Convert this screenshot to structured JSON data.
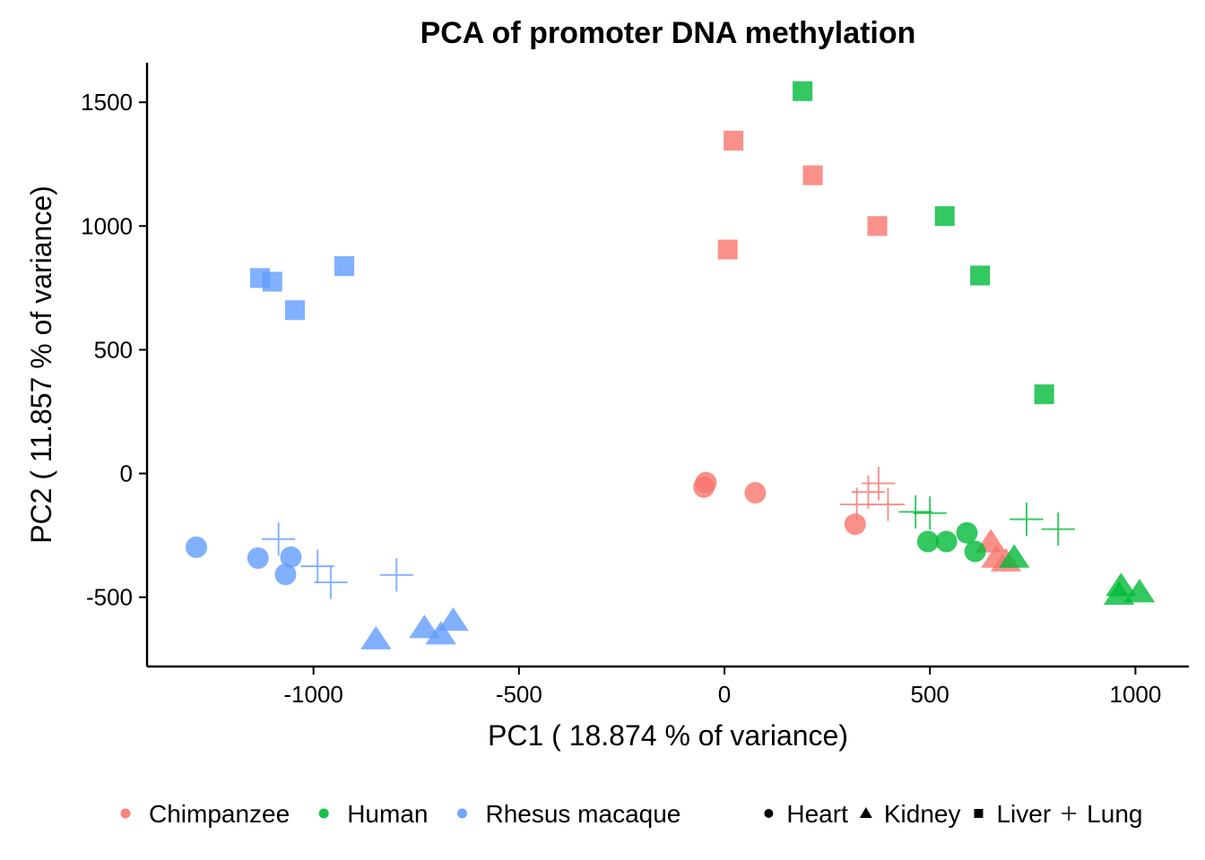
{
  "chart_data": {
    "type": "scatter",
    "title": "PCA of promoter DNA methylation",
    "xlabel": "PC1 ( 18.874 % of variance)",
    "ylabel": "PC2 ( 11.857 % of variance)",
    "xlim": [
      -1405,
      1130
    ],
    "ylim": [
      -780,
      1660
    ],
    "xticks": [
      -1000,
      -500,
      0,
      500,
      1000
    ],
    "xtick_labels": [
      "-1000",
      "-500",
      "0",
      "500",
      "1000"
    ],
    "yticks": [
      -500,
      0,
      500,
      1000,
      1500
    ],
    "ytick_labels": [
      "-500",
      "0",
      "500",
      "1000",
      "1500"
    ],
    "grid": false,
    "legend_position": "bottom",
    "color_legend": [
      {
        "label": "Chimpanzee",
        "color": "#F8766D"
      },
      {
        "label": "Human",
        "color": "#00BA38"
      },
      {
        "label": "Rhesus macaque",
        "color": "#619CFF"
      }
    ],
    "shape_legend": [
      {
        "label": "Heart",
        "shape": "circle"
      },
      {
        "label": "Kidney",
        "shape": "triangle"
      },
      {
        "label": "Liver",
        "shape": "square"
      },
      {
        "label": "Lung",
        "shape": "plus"
      }
    ],
    "series": [
      {
        "name": "Chimpanzee",
        "color": "#F8766D",
        "points": [
          {
            "x": 22,
            "y": 1345,
            "shape": "square"
          },
          {
            "x": 215,
            "y": 1205,
            "shape": "square"
          },
          {
            "x": 372,
            "y": 1000,
            "shape": "square"
          },
          {
            "x": 8,
            "y": 905,
            "shape": "square"
          },
          {
            "x": -50,
            "y": -55,
            "shape": "circle"
          },
          {
            "x": -45,
            "y": -37,
            "shape": "circle"
          },
          {
            "x": 75,
            "y": -78,
            "shape": "circle"
          },
          {
            "x": 318,
            "y": -205,
            "shape": "circle"
          },
          {
            "x": 322,
            "y": -125,
            "shape": "plus"
          },
          {
            "x": 350,
            "y": -75,
            "shape": "plus"
          },
          {
            "x": 375,
            "y": -40,
            "shape": "plus"
          },
          {
            "x": 398,
            "y": -125,
            "shape": "plus"
          },
          {
            "x": 648,
            "y": -278,
            "shape": "triangle"
          },
          {
            "x": 662,
            "y": -340,
            "shape": "triangle"
          },
          {
            "x": 685,
            "y": -355,
            "shape": "triangle"
          }
        ]
      },
      {
        "name": "Human",
        "color": "#00BA38",
        "points": [
          {
            "x": 190,
            "y": 1545,
            "shape": "square"
          },
          {
            "x": 536,
            "y": 1040,
            "shape": "square"
          },
          {
            "x": 622,
            "y": 800,
            "shape": "square"
          },
          {
            "x": 778,
            "y": 320,
            "shape": "square"
          },
          {
            "x": 495,
            "y": -275,
            "shape": "circle"
          },
          {
            "x": 540,
            "y": -275,
            "shape": "circle"
          },
          {
            "x": 590,
            "y": -240,
            "shape": "circle"
          },
          {
            "x": 610,
            "y": -315,
            "shape": "circle"
          },
          {
            "x": 465,
            "y": -155,
            "shape": "plus"
          },
          {
            "x": 500,
            "y": -160,
            "shape": "plus"
          },
          {
            "x": 735,
            "y": -185,
            "shape": "plus"
          },
          {
            "x": 812,
            "y": -225,
            "shape": "plus"
          },
          {
            "x": 705,
            "y": -340,
            "shape": "triangle"
          },
          {
            "x": 965,
            "y": -455,
            "shape": "triangle"
          },
          {
            "x": 960,
            "y": -490,
            "shape": "triangle"
          },
          {
            "x": 1010,
            "y": -480,
            "shape": "triangle"
          }
        ]
      },
      {
        "name": "Rhesus macaque",
        "color": "#619CFF",
        "points": [
          {
            "x": -1130,
            "y": 790,
            "shape": "square"
          },
          {
            "x": -1100,
            "y": 775,
            "shape": "square"
          },
          {
            "x": -1045,
            "y": 660,
            "shape": "square"
          },
          {
            "x": -925,
            "y": 838,
            "shape": "square"
          },
          {
            "x": -1285,
            "y": -298,
            "shape": "circle"
          },
          {
            "x": -1135,
            "y": -342,
            "shape": "circle"
          },
          {
            "x": -1055,
            "y": -338,
            "shape": "circle"
          },
          {
            "x": -1068,
            "y": -408,
            "shape": "circle"
          },
          {
            "x": -1085,
            "y": -265,
            "shape": "plus"
          },
          {
            "x": -990,
            "y": -375,
            "shape": "plus"
          },
          {
            "x": -958,
            "y": -440,
            "shape": "plus"
          },
          {
            "x": -798,
            "y": -410,
            "shape": "plus"
          },
          {
            "x": -848,
            "y": -670,
            "shape": "triangle"
          },
          {
            "x": -730,
            "y": -625,
            "shape": "triangle"
          },
          {
            "x": -690,
            "y": -650,
            "shape": "triangle"
          },
          {
            "x": -660,
            "y": -595,
            "shape": "triangle"
          }
        ]
      }
    ]
  }
}
